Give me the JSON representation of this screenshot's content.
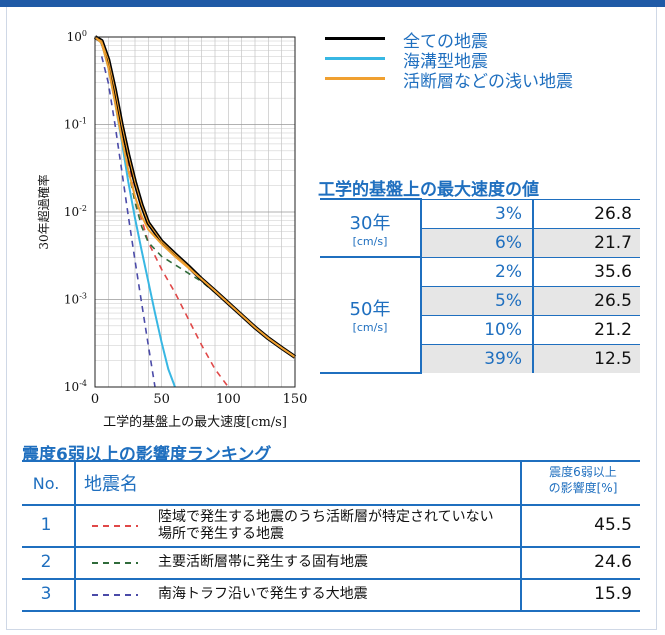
{
  "colors": {
    "all": "#000000",
    "trench": "#38b7e3",
    "shallow": "#f0a030",
    "rank1": "#e04848",
    "rank2": "#2f6b3a",
    "rank3": "#4a4aa8",
    "accent": "#1f6fbf"
  },
  "chart_data": {
    "type": "line",
    "xlabel": "工学的基盤上の最大速度[cm/s]",
    "ylabel": "30年超過確率",
    "xlim": [
      0,
      150
    ],
    "ylim": [
      0.0001,
      1
    ],
    "yscale": "log",
    "grid": true,
    "x_ticks": [
      "0",
      "50",
      "100",
      "150"
    ],
    "y_ticks": [
      "10^0",
      "10^-1",
      "10^-2",
      "10^-3",
      "10^-4"
    ],
    "series": [
      {
        "name": "全ての地震",
        "style": "solid",
        "x": [
          0,
          5,
          10,
          15,
          20,
          25,
          30,
          35,
          40,
          50,
          60,
          70,
          80,
          90,
          100,
          110,
          120,
          130,
          140,
          150
        ],
        "y": [
          1.0,
          0.9,
          0.55,
          0.25,
          0.1,
          0.045,
          0.022,
          0.012,
          0.0075,
          0.0046,
          0.0033,
          0.0024,
          0.0017,
          0.00125,
          0.00091,
          0.00066,
          0.00048,
          0.00036,
          0.00028,
          0.00022
        ]
      },
      {
        "name": "海溝型地震",
        "style": "solid",
        "x": [
          0,
          5,
          10,
          15,
          20,
          25,
          30,
          35,
          40,
          45,
          50,
          55,
          60
        ],
        "y": [
          1.0,
          0.85,
          0.45,
          0.18,
          0.065,
          0.022,
          0.0085,
          0.0036,
          0.0016,
          0.0007,
          0.00032,
          0.00016,
          0.0001
        ]
      },
      {
        "name": "活断層などの浅い地震",
        "style": "solid",
        "x": [
          0,
          5,
          10,
          15,
          20,
          25,
          30,
          35,
          40,
          50,
          60,
          70,
          80,
          90,
          100,
          110,
          120,
          130,
          140,
          150
        ],
        "y": [
          1.0,
          0.85,
          0.45,
          0.18,
          0.07,
          0.03,
          0.015,
          0.009,
          0.0063,
          0.0043,
          0.0031,
          0.0023,
          0.0017,
          0.00125,
          0.00091,
          0.00066,
          0.00048,
          0.00036,
          0.00028,
          0.00022
        ]
      },
      {
        "style": "dashed",
        "x": [
          10,
          15,
          20,
          25,
          30,
          40,
          50,
          60,
          70,
          80,
          90,
          100
        ],
        "y": [
          0.5,
          0.22,
          0.09,
          0.035,
          0.015,
          0.0045,
          0.0022,
          0.0012,
          0.0006,
          0.0003,
          0.00016,
          0.0001
        ]
      },
      {
        "style": "dashed",
        "x": [
          10,
          15,
          20,
          25,
          30,
          35,
          40,
          50,
          60,
          70,
          80,
          90,
          100,
          110,
          120,
          130,
          140,
          150
        ],
        "y": [
          0.5,
          0.2,
          0.08,
          0.03,
          0.013,
          0.0068,
          0.0045,
          0.0031,
          0.0025,
          0.002,
          0.0016,
          0.0012,
          0.0009,
          0.00066,
          0.00048,
          0.00036,
          0.00028,
          0.00022
        ]
      },
      {
        "style": "dashed",
        "x": [
          5,
          10,
          15,
          20,
          25,
          30,
          35,
          40,
          45
        ],
        "y": [
          0.6,
          0.3,
          0.1,
          0.03,
          0.009,
          0.0028,
          0.0009,
          0.0003,
          0.0001
        ]
      }
    ]
  },
  "pgv_table": {
    "title": "工学的基盤上の最大速度の値",
    "groups": [
      {
        "period": "30年",
        "unit": "[cm/s]",
        "rows": [
          {
            "pct": "3%",
            "value": "26.8"
          },
          {
            "pct": "6%",
            "value": "21.7"
          }
        ]
      },
      {
        "period": "50年",
        "unit": "[cm/s]",
        "rows": [
          {
            "pct": "2%",
            "value": "35.6"
          },
          {
            "pct": "5%",
            "value": "26.5"
          },
          {
            "pct": "10%",
            "value": "21.2"
          },
          {
            "pct": "39%",
            "value": "12.5"
          }
        ]
      }
    ]
  },
  "ranking": {
    "title": "震度6弱以上の影響度ランキング",
    "header": {
      "no": "No.",
      "name": "地震名",
      "impact_line1": "震度6弱以上",
      "impact_line2": "の影響度[%]"
    },
    "rows": [
      {
        "no": "1",
        "name": "陸域で発生する地震のうち活断層が特定されていない場所で発生する地震",
        "value": "45.5"
      },
      {
        "no": "2",
        "name": "主要活断層帯に発生する固有地震",
        "value": "24.6"
      },
      {
        "no": "3",
        "name": "南海トラフ沿いで発生する大地震",
        "value": "15.9"
      }
    ]
  }
}
